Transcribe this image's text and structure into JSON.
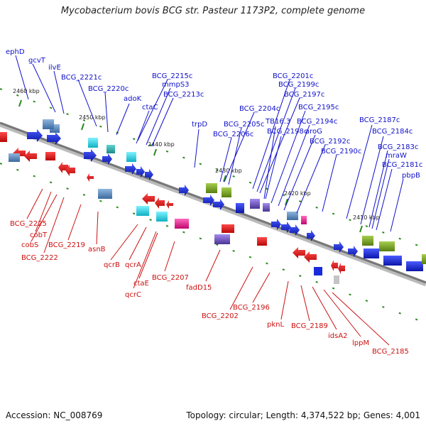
{
  "title": "Mycobacterium bovis BCG str. Pasteur 1173P2, complete genome",
  "footer": {
    "accession": "Accession: NC_008769",
    "topology": "Topology: circular; Length: 4,374,522 bp; Genes: 4,001"
  },
  "ticks": [
    "2460 kbp",
    "2450 kbp",
    "2440 kbp",
    "2430 kbp",
    "2420 kbp",
    "2410 kbp"
  ],
  "colors": {
    "forward_gene": "#1a2adc",
    "reverse_gene": "#e81010",
    "forward_label": "#1010cc",
    "reverse_label": "#cc1010",
    "backbone": "#888888",
    "cyan_box": "#19c8d8",
    "teal_box": "#2aa8a8",
    "slate_box": "#4f7fb0",
    "magenta_box": "#e0138c",
    "olive_box": "#6e9a1e",
    "purple_box": "#6a4fb8",
    "tick_mark": "#2c8a1e"
  },
  "labels_top": [
    "ephD",
    "gcvT",
    "ilvE",
    "BCG_2221c",
    "BCG_2220c",
    "BCG_2215c",
    "mmpS3",
    "BCG_2213c",
    "adoK",
    "ctaC",
    "trpD",
    "BCG_2204c",
    "BCG_2205c",
    "BCG_2206c",
    "BCG_2201c",
    "BCG_2199c",
    "BCG_2197c",
    "TB16.3",
    "BCG_2198c",
    "BCG_2195c",
    "BCG_2194c",
    "aroG",
    "BCG_2192c",
    "BCG_2190c",
    "BCG_2187c",
    "BCG_2184c",
    "BCG_2183c",
    "mraW",
    "BCG_2181c",
    "pbpB"
  ],
  "labels_bottom": [
    "BCG_2225",
    "cobT",
    "cobS",
    "BCG_2222",
    "BCG_2219",
    "asnB",
    "qcrB",
    "qcrA",
    "qcrC",
    "ctaE",
    "BCG_2207",
    "fadD15",
    "BCG_2202",
    "BCG_2196",
    "pknL",
    "BCG_2189",
    "idsA2",
    "lppM",
    "BCG_2185"
  ]
}
